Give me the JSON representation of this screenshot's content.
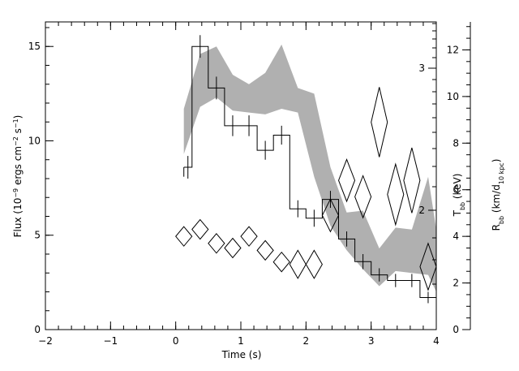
{
  "chart_data": {
    "type": "line",
    "xlabel": "Time (s)",
    "xlim": [
      -2,
      4
    ],
    "x_ticks": [
      "−2",
      "−1",
      "0",
      "1",
      "2",
      "3",
      "4"
    ],
    "left_axis": {
      "label": "Flux (10⁻⁹ ergs cm⁻² s⁻¹)",
      "label_parts": [
        "Flux (10",
        "−9",
        " ergs cm",
        "−2",
        " s",
        "−1",
        ")"
      ],
      "ylim": [
        0,
        16.3
      ],
      "ticks": [
        "0",
        "5",
        "10",
        "15"
      ]
    },
    "right_axis_T": {
      "label": "T_bb (keV)",
      "label_parts": [
        "T",
        "bb",
        " (keV)"
      ],
      "ticks": [
        "2",
        "3"
      ]
    },
    "right_axis_R": {
      "label": "R_bb (km/d_10 kpc)",
      "label_parts": [
        "R",
        "bb",
        " (km/d",
        "10 kpc",
        ")"
      ],
      "ylim": [
        0,
        13.2
      ],
      "ticks": [
        "0",
        "2",
        "4",
        "6",
        "8",
        "10",
        "12"
      ]
    },
    "series": [
      {
        "style": "step-histogram-with-errors",
        "bin_edges": [
          0.125,
          0.25,
          0.5,
          0.75,
          1.0,
          1.25,
          1.5,
          1.75,
          2.0,
          2.25,
          2.5,
          2.75,
          3.0,
          3.25,
          3.5,
          3.75,
          4.0
        ],
        "values": [
          8.6,
          15.0,
          12.8,
          10.8,
          10.8,
          9.5,
          10.3,
          6.4,
          5.9,
          6.9,
          4.8,
          3.6,
          2.9,
          2.6,
          2.6,
          1.7
        ],
        "errors": [
          0.6,
          0.6,
          0.6,
          0.55,
          0.55,
          0.5,
          0.5,
          0.45,
          0.45,
          0.45,
          0.4,
          0.4,
          0.35,
          0.35,
          0.35,
          0.3
        ]
      },
      {
        "style": "shaded-band",
        "axis": "temperature",
        "x": [
          0.125,
          0.375,
          0.625,
          0.875,
          1.125,
          1.375,
          1.625,
          1.875,
          2.125,
          2.375,
          2.625,
          2.875,
          3.125,
          3.375,
          3.625,
          3.875,
          4.0
        ],
        "upper": [
          11.7,
          14.6,
          15.0,
          13.5,
          13.0,
          13.6,
          15.1,
          12.8,
          12.5,
          8.6,
          6.2,
          6.3,
          4.3,
          5.4,
          5.3,
          8.1,
          5.3
        ],
        "lower": [
          9.3,
          11.8,
          12.3,
          11.6,
          11.5,
          11.4,
          11.7,
          11.5,
          8.1,
          5.5,
          4.2,
          3.2,
          2.3,
          3.1,
          3.0,
          2.9,
          2.0
        ]
      },
      {
        "style": "diamonds",
        "axis": "radius",
        "x": [
          0.125,
          0.375,
          0.625,
          0.875,
          1.125,
          1.375,
          1.625,
          1.875,
          2.125,
          2.375,
          2.625,
          2.875,
          3.125,
          3.375,
          3.625,
          3.875
        ],
        "y": [
          4.0,
          4.3,
          3.7,
          3.5,
          4.0,
          3.4,
          2.9,
          2.8,
          2.8,
          4.9,
          6.4,
          5.7,
          8.9,
          5.8,
          6.4,
          2.7
        ],
        "yerr": [
          0.35,
          0.3,
          0.35,
          0.35,
          0.35,
          0.35,
          0.4,
          0.6,
          0.6,
          0.7,
          0.9,
          0.9,
          1.5,
          1.3,
          1.4,
          1.0
        ]
      }
    ]
  }
}
